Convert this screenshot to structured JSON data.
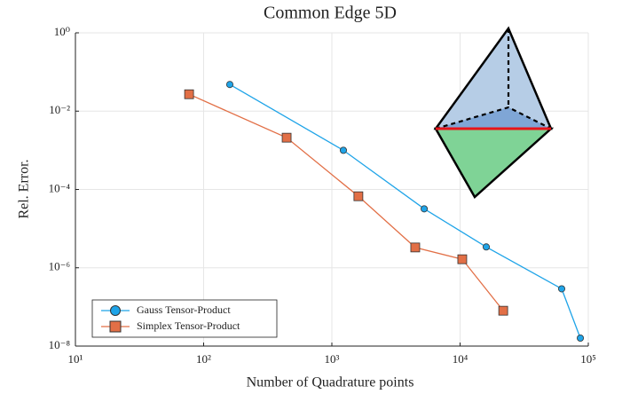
{
  "chart_data": {
    "type": "line",
    "title": "Common Edge 5D",
    "xlabel": "Number of Quadrature points",
    "ylabel": "Rel. Error.",
    "xscale": "log",
    "yscale": "log",
    "grid": true,
    "legend": "lower left",
    "xlim": [
      10,
      100000
    ],
    "xticks": [
      {
        "value": 10,
        "label": "10¹"
      },
      {
        "value": 100,
        "label": "10²"
      },
      {
        "value": 1000,
        "label": "10³"
      },
      {
        "value": 10000,
        "label": "10⁴"
      },
      {
        "value": 100000,
        "label": "10⁵"
      }
    ],
    "ylim": [
      1e-08,
      1
    ],
    "yticks": [
      {
        "value": 1,
        "label": "10⁰"
      },
      {
        "value": 0.01,
        "label": "10⁻²"
      },
      {
        "value": 0.0001,
        "label": "10⁻⁴"
      },
      {
        "value": 1e-06,
        "label": "10⁻⁶"
      },
      {
        "value": 1e-08,
        "label": "10⁻⁸"
      }
    ],
    "series": [
      {
        "name": "Gauss Tensor-Product",
        "color": "#1fa4e8",
        "marker": "circle",
        "x": [
          160,
          1230,
          5250,
          16000,
          62000,
          86700
        ],
        "values": [
          0.048,
          0.001,
          3.2e-05,
          3.4e-06,
          2.9e-07,
          1.6e-08
        ]
      },
      {
        "name": "Simplex Tensor-Product",
        "color": "#e26f46",
        "marker": "square",
        "x": [
          77,
          444,
          1610,
          4470,
          10400,
          21700
        ],
        "values": [
          0.027,
          0.0021,
          6.7e-05,
          3.3e-06,
          1.65e-06,
          8e-08
        ]
      }
    ]
  }
}
